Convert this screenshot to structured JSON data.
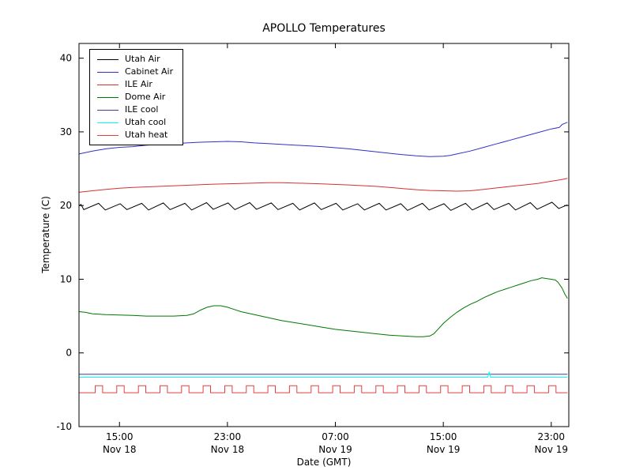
{
  "chart_data": {
    "type": "line",
    "title": "APOLLO Temperatures",
    "xlabel": "Date (GMT)",
    "ylabel": "Temperature (C)",
    "x_unit": "hours since Nov 18 12:00 GMT",
    "xlim": [
      0,
      36.3
    ],
    "ylim": [
      -10,
      42
    ],
    "yticks": [
      -10,
      0,
      10,
      20,
      30,
      40
    ],
    "xticks": [
      {
        "t": 3,
        "time": "15:00",
        "date": "Nov 18"
      },
      {
        "t": 11,
        "time": "23:00",
        "date": "Nov 18"
      },
      {
        "t": 19,
        "time": "07:00",
        "date": "Nov 19"
      },
      {
        "t": 27,
        "time": "15:00",
        "date": "Nov 19"
      },
      {
        "t": 35,
        "time": "23:00",
        "date": "Nov 19"
      }
    ],
    "grid": false,
    "legend_position": "upper left",
    "series": [
      {
        "name": "Utah Air",
        "color": "#000000",
        "points": [
          [
            0,
            20.0
          ],
          [
            0.15,
            20.15
          ],
          [
            0.35,
            19.45
          ],
          [
            1.45,
            20.3
          ],
          [
            1.95,
            19.4
          ],
          [
            3.05,
            20.25
          ],
          [
            3.55,
            19.45
          ],
          [
            4.65,
            20.3
          ],
          [
            5.15,
            19.4
          ],
          [
            6.25,
            20.35
          ],
          [
            6.75,
            19.45
          ],
          [
            7.85,
            20.3
          ],
          [
            8.35,
            19.4
          ],
          [
            9.45,
            20.4
          ],
          [
            9.95,
            19.5
          ],
          [
            11.05,
            20.35
          ],
          [
            11.55,
            19.45
          ],
          [
            12.65,
            20.4
          ],
          [
            13.15,
            19.5
          ],
          [
            14.25,
            20.35
          ],
          [
            14.75,
            19.45
          ],
          [
            15.85,
            20.3
          ],
          [
            16.35,
            19.4
          ],
          [
            17.45,
            20.35
          ],
          [
            17.95,
            19.45
          ],
          [
            19.05,
            20.3
          ],
          [
            19.55,
            19.4
          ],
          [
            20.65,
            20.25
          ],
          [
            21.15,
            19.4
          ],
          [
            22.25,
            20.3
          ],
          [
            22.75,
            19.4
          ],
          [
            23.85,
            20.25
          ],
          [
            24.35,
            19.35
          ],
          [
            25.45,
            20.3
          ],
          [
            25.95,
            19.4
          ],
          [
            27.05,
            20.25
          ],
          [
            27.55,
            19.35
          ],
          [
            28.65,
            20.3
          ],
          [
            29.15,
            19.4
          ],
          [
            30.25,
            20.35
          ],
          [
            30.75,
            19.45
          ],
          [
            31.85,
            20.3
          ],
          [
            32.35,
            19.4
          ],
          [
            33.45,
            20.4
          ],
          [
            33.95,
            19.5
          ],
          [
            35.05,
            20.45
          ],
          [
            35.55,
            19.6
          ],
          [
            36.2,
            20.1
          ]
        ]
      },
      {
        "name": "Cabinet Air",
        "color": "#3030c8",
        "points": [
          [
            0,
            27.0
          ],
          [
            1,
            27.4
          ],
          [
            2,
            27.7
          ],
          [
            3,
            27.9
          ],
          [
            4,
            28.0
          ],
          [
            5,
            28.2
          ],
          [
            6,
            28.3
          ],
          [
            7,
            28.4
          ],
          [
            8,
            28.5
          ],
          [
            9,
            28.6
          ],
          [
            10,
            28.65
          ],
          [
            11,
            28.7
          ],
          [
            12,
            28.65
          ],
          [
            13,
            28.5
          ],
          [
            14,
            28.4
          ],
          [
            15,
            28.3
          ],
          [
            16,
            28.2
          ],
          [
            17,
            28.1
          ],
          [
            18,
            28.0
          ],
          [
            19,
            27.85
          ],
          [
            20,
            27.7
          ],
          [
            21,
            27.5
          ],
          [
            22,
            27.3
          ],
          [
            23,
            27.1
          ],
          [
            24,
            26.9
          ],
          [
            25,
            26.75
          ],
          [
            26,
            26.65
          ],
          [
            27,
            26.7
          ],
          [
            27.5,
            26.8
          ],
          [
            28,
            27.0
          ],
          [
            29,
            27.4
          ],
          [
            30,
            27.9
          ],
          [
            31,
            28.4
          ],
          [
            32,
            28.9
          ],
          [
            33,
            29.4
          ],
          [
            34,
            29.9
          ],
          [
            35,
            30.4
          ],
          [
            35.6,
            30.6
          ],
          [
            35.8,
            31.0
          ],
          [
            36.2,
            31.3
          ]
        ]
      },
      {
        "name": "ILE Air",
        "color": "#d83030",
        "points": [
          [
            0,
            21.8
          ],
          [
            1,
            22.0
          ],
          [
            2,
            22.2
          ],
          [
            3,
            22.35
          ],
          [
            4,
            22.45
          ],
          [
            6,
            22.6
          ],
          [
            8,
            22.75
          ],
          [
            10,
            22.9
          ],
          [
            12,
            23.0
          ],
          [
            14,
            23.1
          ],
          [
            15,
            23.1
          ],
          [
            16,
            23.05
          ],
          [
            18,
            22.95
          ],
          [
            20,
            22.8
          ],
          [
            22,
            22.6
          ],
          [
            23,
            22.45
          ],
          [
            24,
            22.3
          ],
          [
            25,
            22.15
          ],
          [
            26,
            22.05
          ],
          [
            27,
            22.0
          ],
          [
            28,
            21.95
          ],
          [
            29,
            22.0
          ],
          [
            30,
            22.2
          ],
          [
            31,
            22.4
          ],
          [
            32,
            22.6
          ],
          [
            33,
            22.8
          ],
          [
            34,
            23.0
          ],
          [
            35,
            23.3
          ],
          [
            35.7,
            23.5
          ],
          [
            36.2,
            23.7
          ]
        ]
      },
      {
        "name": "Dome Air",
        "color": "#007700",
        "points": [
          [
            0,
            5.6
          ],
          [
            0.5,
            5.5
          ],
          [
            1,
            5.3
          ],
          [
            2,
            5.2
          ],
          [
            3,
            5.15
          ],
          [
            4,
            5.1
          ],
          [
            5,
            5.0
          ],
          [
            6,
            5.0
          ],
          [
            7,
            5.0
          ],
          [
            8,
            5.1
          ],
          [
            8.5,
            5.3
          ],
          [
            9,
            5.8
          ],
          [
            9.5,
            6.2
          ],
          [
            10,
            6.4
          ],
          [
            10.5,
            6.4
          ],
          [
            11,
            6.2
          ],
          [
            11.5,
            5.9
          ],
          [
            12,
            5.6
          ],
          [
            13,
            5.2
          ],
          [
            14,
            4.8
          ],
          [
            15,
            4.4
          ],
          [
            16,
            4.1
          ],
          [
            17,
            3.8
          ],
          [
            18,
            3.5
          ],
          [
            19,
            3.2
          ],
          [
            20,
            3.0
          ],
          [
            21,
            2.8
          ],
          [
            22,
            2.6
          ],
          [
            22.5,
            2.5
          ],
          [
            23,
            2.4
          ],
          [
            23.5,
            2.35
          ],
          [
            24,
            2.3
          ],
          [
            24.5,
            2.25
          ],
          [
            25,
            2.2
          ],
          [
            25.5,
            2.2
          ],
          [
            26,
            2.3
          ],
          [
            26.3,
            2.6
          ],
          [
            26.6,
            3.2
          ],
          [
            27,
            4.0
          ],
          [
            27.5,
            4.8
          ],
          [
            28,
            5.5
          ],
          [
            28.5,
            6.1
          ],
          [
            29,
            6.6
          ],
          [
            29.5,
            7.0
          ],
          [
            30,
            7.5
          ],
          [
            30.5,
            7.9
          ],
          [
            31,
            8.3
          ],
          [
            31.5,
            8.6
          ],
          [
            32,
            8.9
          ],
          [
            32.5,
            9.2
          ],
          [
            33,
            9.5
          ],
          [
            33.5,
            9.8
          ],
          [
            34,
            10.0
          ],
          [
            34.3,
            10.2
          ],
          [
            34.6,
            10.1
          ],
          [
            35,
            10.0
          ],
          [
            35.3,
            9.9
          ],
          [
            35.5,
            9.6
          ],
          [
            35.8,
            8.8
          ],
          [
            36,
            8.0
          ],
          [
            36.2,
            7.4
          ]
        ]
      },
      {
        "name": "ILE cool",
        "color": "#483d8b",
        "points": [
          [
            0,
            -2.9
          ],
          [
            36.2,
            -2.9
          ]
        ]
      },
      {
        "name": "Utah cool",
        "color": "#00ffff",
        "points": [
          [
            0,
            -3.3
          ],
          [
            30.3,
            -3.3
          ],
          [
            30.4,
            -2.55
          ],
          [
            30.5,
            -3.3
          ],
          [
            36.2,
            -3.3
          ]
        ]
      },
      {
        "name": "Utah heat",
        "color": "#e04040",
        "points": [
          [
            0,
            -5.4
          ],
          [
            1.2,
            -5.4
          ],
          [
            1.2,
            -4.45
          ],
          [
            1.75,
            -4.45
          ],
          [
            1.75,
            -5.4
          ],
          [
            2.8,
            -5.4
          ],
          [
            2.8,
            -4.45
          ],
          [
            3.35,
            -4.45
          ],
          [
            3.35,
            -5.4
          ],
          [
            4.4,
            -5.4
          ],
          [
            4.4,
            -4.45
          ],
          [
            4.95,
            -4.45
          ],
          [
            4.95,
            -5.4
          ],
          [
            6.0,
            -5.4
          ],
          [
            6.0,
            -4.45
          ],
          [
            6.55,
            -4.45
          ],
          [
            6.55,
            -5.4
          ],
          [
            7.6,
            -5.4
          ],
          [
            7.6,
            -4.45
          ],
          [
            8.15,
            -4.45
          ],
          [
            8.15,
            -5.4
          ],
          [
            9.2,
            -5.4
          ],
          [
            9.2,
            -4.45
          ],
          [
            9.75,
            -4.45
          ],
          [
            9.75,
            -5.4
          ],
          [
            10.8,
            -5.4
          ],
          [
            10.8,
            -4.45
          ],
          [
            11.35,
            -4.45
          ],
          [
            11.35,
            -5.4
          ],
          [
            12.4,
            -5.4
          ],
          [
            12.4,
            -4.45
          ],
          [
            12.95,
            -4.45
          ],
          [
            12.95,
            -5.4
          ],
          [
            14.0,
            -5.4
          ],
          [
            14.0,
            -4.45
          ],
          [
            14.55,
            -4.45
          ],
          [
            14.55,
            -5.4
          ],
          [
            15.6,
            -5.4
          ],
          [
            15.6,
            -4.45
          ],
          [
            16.15,
            -4.45
          ],
          [
            16.15,
            -5.4
          ],
          [
            17.2,
            -5.4
          ],
          [
            17.2,
            -4.45
          ],
          [
            17.75,
            -4.45
          ],
          [
            17.75,
            -5.4
          ],
          [
            18.8,
            -5.4
          ],
          [
            18.8,
            -4.45
          ],
          [
            19.35,
            -4.45
          ],
          [
            19.35,
            -5.4
          ],
          [
            20.4,
            -5.4
          ],
          [
            20.4,
            -4.45
          ],
          [
            20.95,
            -4.45
          ],
          [
            20.95,
            -5.4
          ],
          [
            22.0,
            -5.4
          ],
          [
            22.0,
            -4.45
          ],
          [
            22.55,
            -4.45
          ],
          [
            22.55,
            -5.4
          ],
          [
            23.6,
            -5.4
          ],
          [
            23.6,
            -4.45
          ],
          [
            24.15,
            -4.45
          ],
          [
            24.15,
            -5.4
          ],
          [
            25.2,
            -5.4
          ],
          [
            25.2,
            -4.45
          ],
          [
            25.75,
            -4.45
          ],
          [
            25.75,
            -5.4
          ],
          [
            26.8,
            -5.4
          ],
          [
            26.8,
            -4.45
          ],
          [
            27.35,
            -4.45
          ],
          [
            27.35,
            -5.4
          ],
          [
            28.4,
            -5.4
          ],
          [
            28.4,
            -4.45
          ],
          [
            28.95,
            -4.45
          ],
          [
            28.95,
            -5.4
          ],
          [
            30.0,
            -5.4
          ],
          [
            30.0,
            -4.45
          ],
          [
            30.55,
            -4.45
          ],
          [
            30.55,
            -5.4
          ],
          [
            31.6,
            -5.4
          ],
          [
            31.6,
            -4.45
          ],
          [
            32.15,
            -4.45
          ],
          [
            32.15,
            -5.4
          ],
          [
            33.2,
            -5.4
          ],
          [
            33.2,
            -4.45
          ],
          [
            33.75,
            -4.45
          ],
          [
            33.75,
            -5.4
          ],
          [
            34.8,
            -5.4
          ],
          [
            34.8,
            -4.45
          ],
          [
            35.35,
            -4.45
          ],
          [
            35.35,
            -5.4
          ],
          [
            36.2,
            -5.4
          ]
        ]
      }
    ]
  }
}
